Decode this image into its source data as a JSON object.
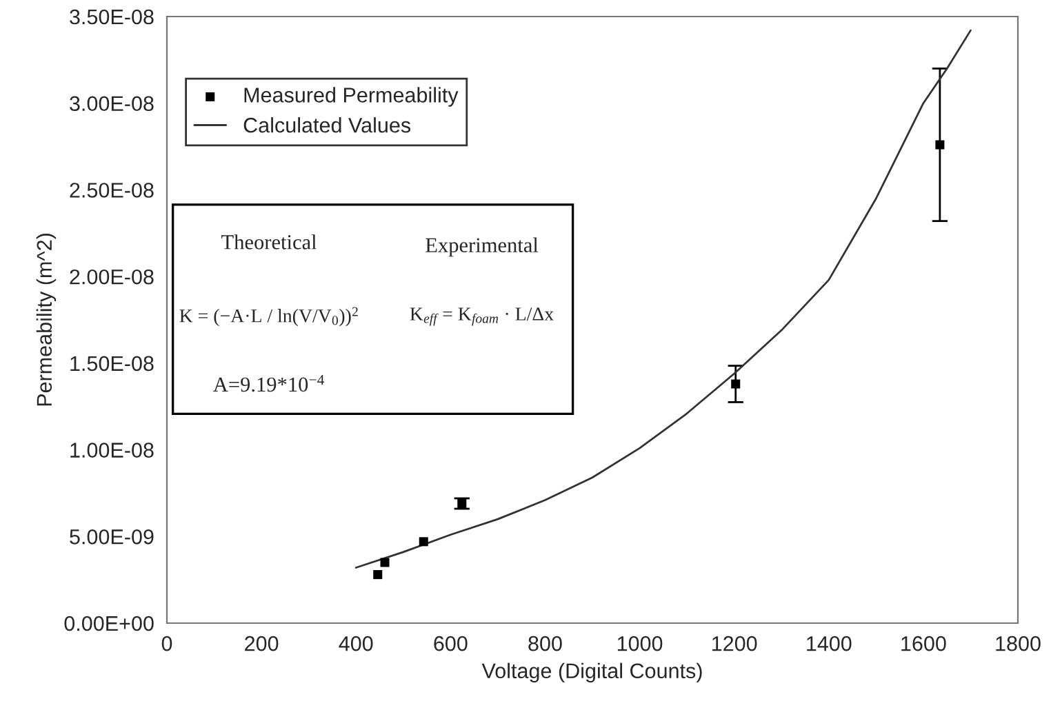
{
  "chart_data": {
    "type": "scatter",
    "xlabel": "Voltage (Digital Counts)",
    "ylabel": "Permeability (m^2)",
    "xlim": [
      0,
      1800
    ],
    "xticks": [
      0,
      200,
      400,
      600,
      800,
      1000,
      1200,
      1400,
      1600,
      1800
    ],
    "ylim": [
      0,
      3.5e-08
    ],
    "yticks": [
      {
        "value": 0,
        "label": "0.00E+00"
      },
      {
        "value": 5e-09,
        "label": "5.00E-09"
      },
      {
        "value": 1e-08,
        "label": "1.00E-08"
      },
      {
        "value": 1.5e-08,
        "label": "1.50E-08"
      },
      {
        "value": 2e-08,
        "label": "2.00E-08"
      },
      {
        "value": 2.5e-08,
        "label": "2.50E-08"
      },
      {
        "value": 3e-08,
        "label": "3.00E-08"
      },
      {
        "value": 3.5e-08,
        "label": "3.50E-08"
      }
    ],
    "grid": false,
    "legend": "top left",
    "series": [
      {
        "name": "Measured Permeability",
        "marker": "square",
        "color": "#000000",
        "x": [
          446,
          461,
          543,
          624,
          1203,
          1635
        ],
        "values": [
          2.8e-09,
          3.5e-09,
          4.7e-09,
          6.9e-09,
          1.38e-08,
          2.76e-08
        ],
        "errors": [
          null,
          null,
          null,
          3e-10,
          1.05e-09,
          4.4e-09
        ]
      },
      {
        "name": "Calculated Values",
        "type": "line",
        "marker": "none",
        "line_style": "solid",
        "color": "#333333",
        "x": [
          400,
          500,
          600,
          700,
          800,
          900,
          1000,
          1100,
          1200,
          1300,
          1400,
          1500,
          1600,
          1650,
          1700
        ],
        "values": [
          3.2e-09,
          4.1e-09,
          5.1e-09,
          6e-09,
          7.1e-09,
          8.4e-09,
          1.01e-08,
          1.21e-08,
          1.44e-08,
          1.69e-08,
          1.98e-08,
          2.45e-08,
          3e-08,
          3.2e-08,
          3.42e-08
        ]
      }
    ],
    "annotations": [
      "Theoretical",
      "K = (−A·L / ln(V/V$_{0}$))$^{2}$",
      "A=9.19*10$^{−4}$",
      "Experimental",
      "K$_{eff}$ = K$_{foam}$ · L/Δx"
    ]
  }
}
